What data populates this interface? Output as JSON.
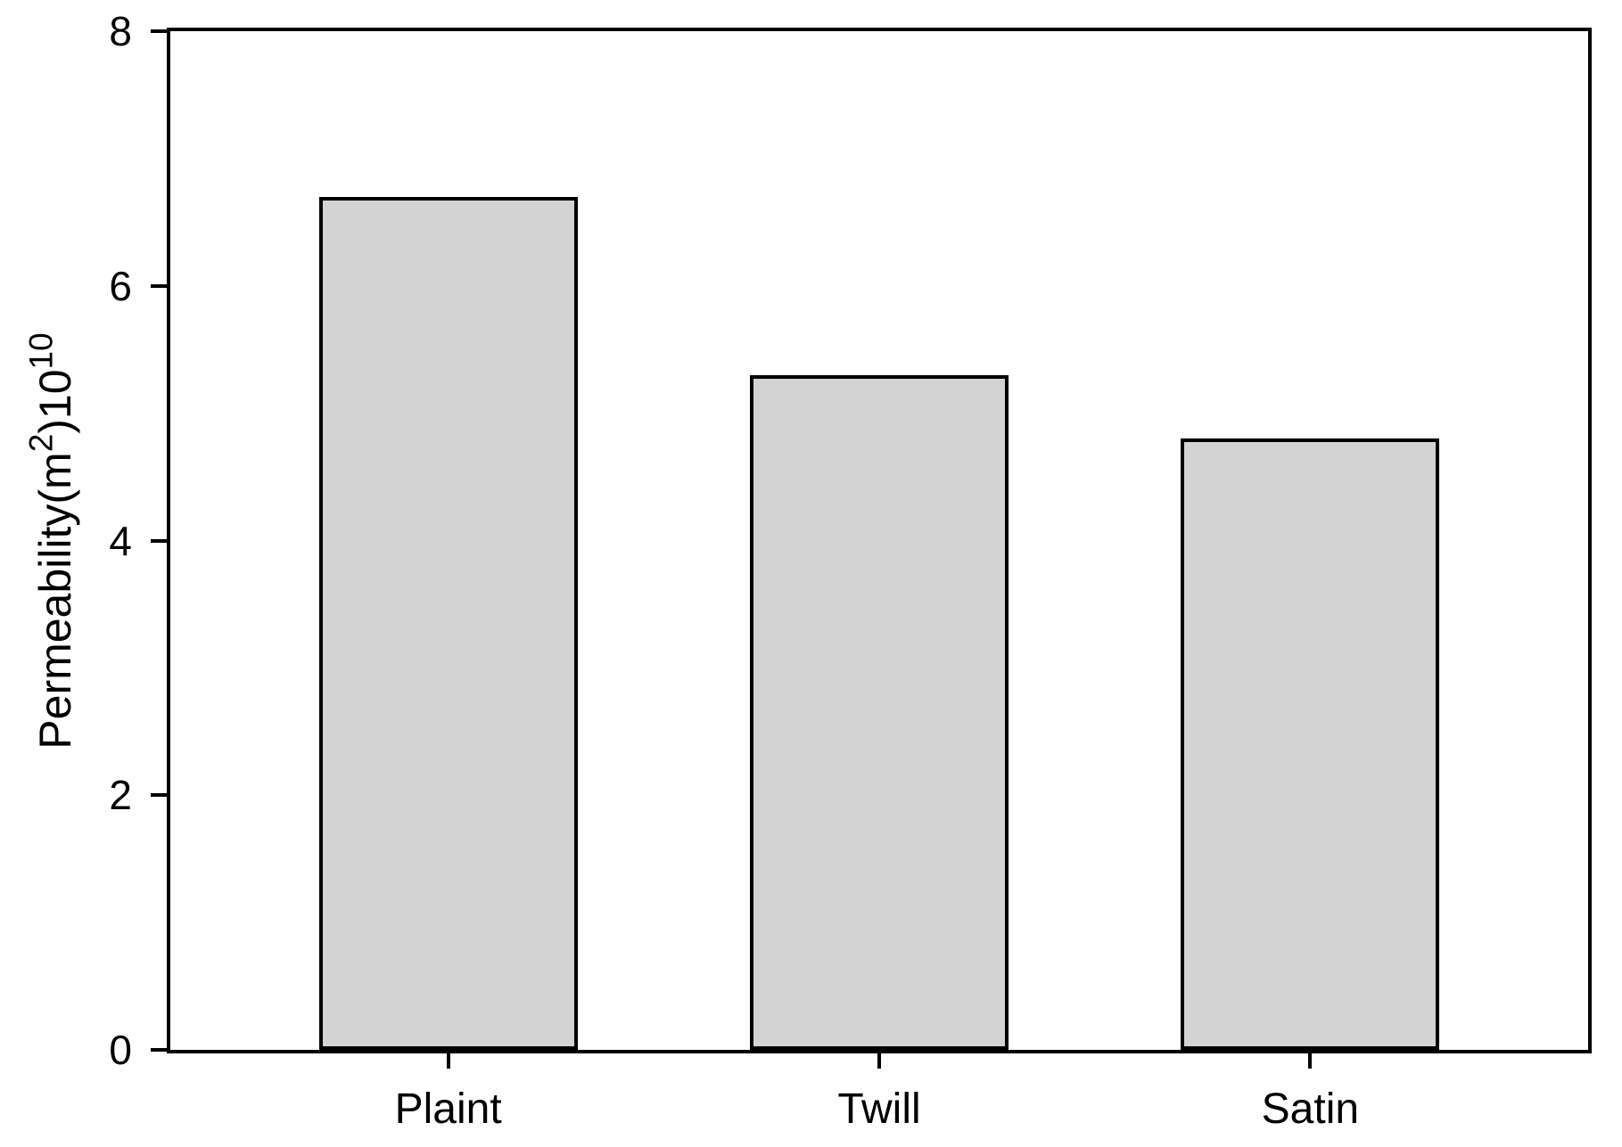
{
  "figure": {
    "background": "#ffffff"
  },
  "chart_data": {
    "type": "bar",
    "title": "",
    "categories": [
      "Plaint",
      "Twill",
      "Satin"
    ],
    "values": [
      6.7,
      5.3,
      4.8
    ],
    "ylabel_parts": [
      {
        "text": "Permeability(m"
      },
      {
        "sup": "2"
      },
      {
        "text": ")10"
      },
      {
        "sup": "10"
      }
    ],
    "xlabel": "",
    "yticks": [
      "0",
      "2",
      "4",
      "6",
      "8"
    ],
    "ylim": [
      0,
      8
    ],
    "bar_fill": "#d3d3d3",
    "bar_border": "#000000",
    "axis_color": "#000000",
    "grid": false,
    "legend": false,
    "tick_direction": "out"
  }
}
